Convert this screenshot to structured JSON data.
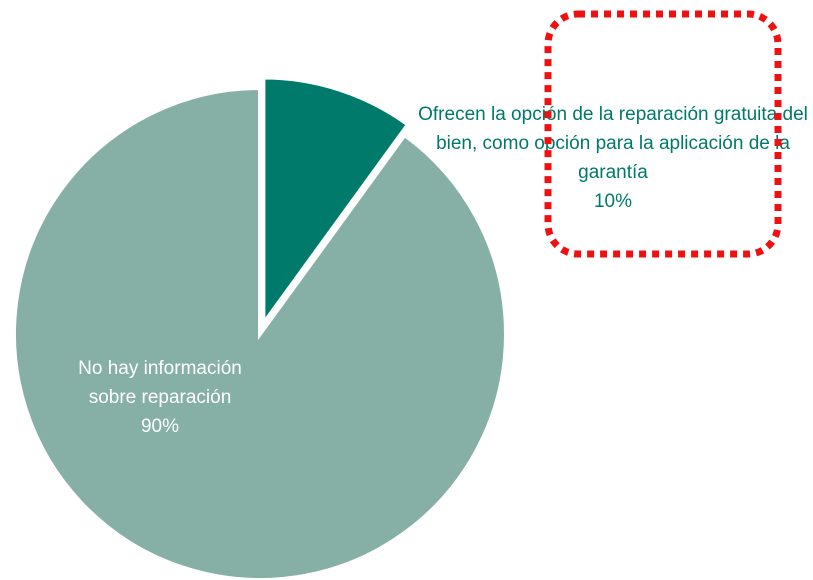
{
  "chart_data": {
    "type": "pie",
    "categories": [
      "Ofrecen la opción de la reparación gratuita del bien, como opción para la aplicación de la garantía",
      "No hay información sobre reparación"
    ],
    "values": [
      10,
      90
    ],
    "value_labels": [
      "10%",
      "90%"
    ],
    "colors": [
      "#007a6b",
      "#86b0a6"
    ]
  }
}
